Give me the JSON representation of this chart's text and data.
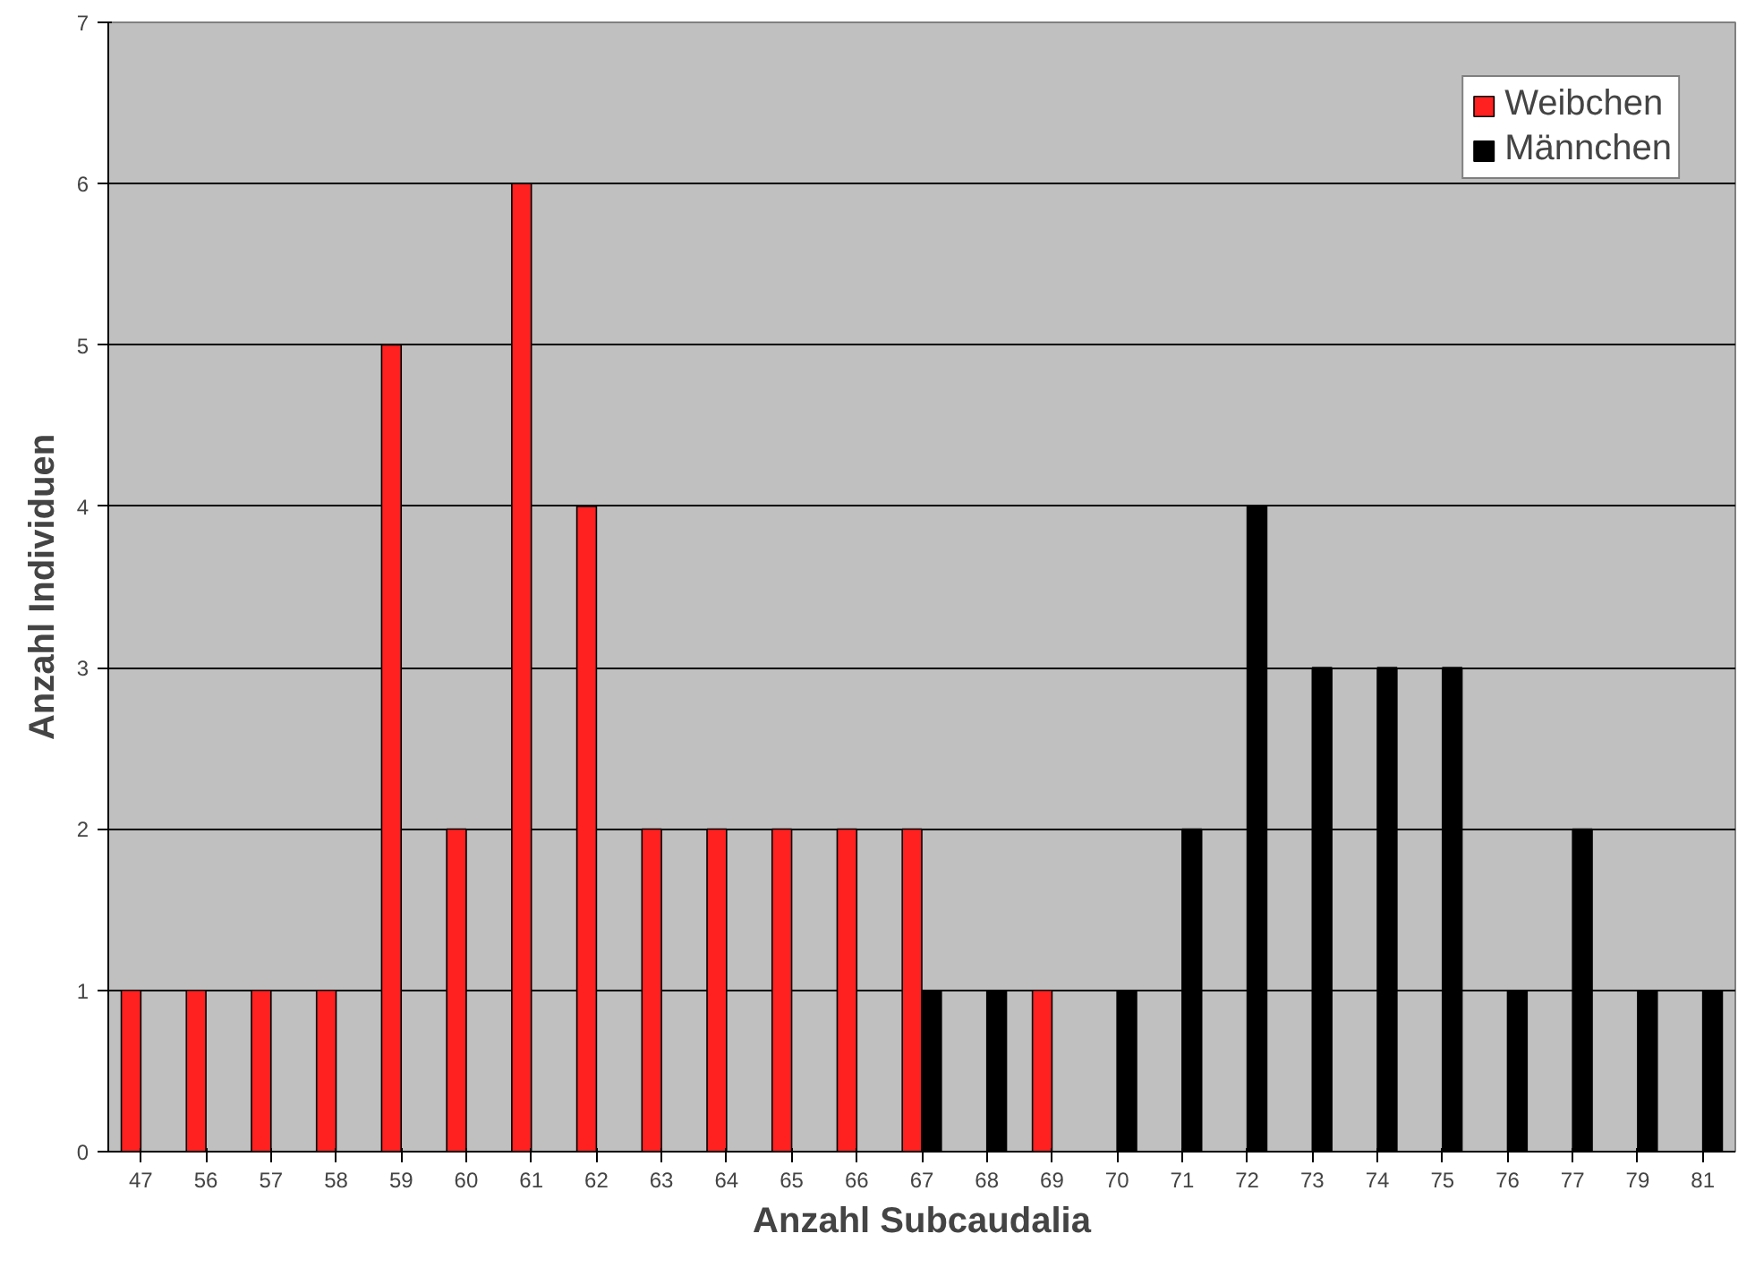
{
  "chart_data": {
    "type": "bar",
    "xlabel": "Anzahl Subcaudalia",
    "ylabel": "Anzahl Individuen",
    "categories": [
      "47",
      "56",
      "57",
      "58",
      "59",
      "60",
      "61",
      "62",
      "63",
      "64",
      "65",
      "66",
      "67",
      "68",
      "69",
      "70",
      "71",
      "72",
      "73",
      "74",
      "75",
      "76",
      "77",
      "79",
      "81"
    ],
    "series": [
      {
        "name": "Weibchen",
        "color": "#ff2020",
        "values": [
          1,
          1,
          1,
          1,
          5,
          2,
          6,
          4,
          2,
          2,
          2,
          2,
          2,
          null,
          1,
          null,
          null,
          null,
          null,
          null,
          null,
          null,
          null,
          null,
          null
        ]
      },
      {
        "name": "Männchen",
        "color": "#000000",
        "values": [
          null,
          null,
          null,
          null,
          null,
          null,
          null,
          null,
          null,
          null,
          null,
          null,
          1,
          1,
          null,
          1,
          2,
          4,
          3,
          3,
          3,
          1,
          2,
          1,
          1
        ]
      }
    ],
    "ylim": [
      0,
      7
    ],
    "yticks": [
      0,
      1,
      2,
      3,
      4,
      5,
      6,
      7
    ],
    "grid": "y",
    "legend": "top right"
  }
}
